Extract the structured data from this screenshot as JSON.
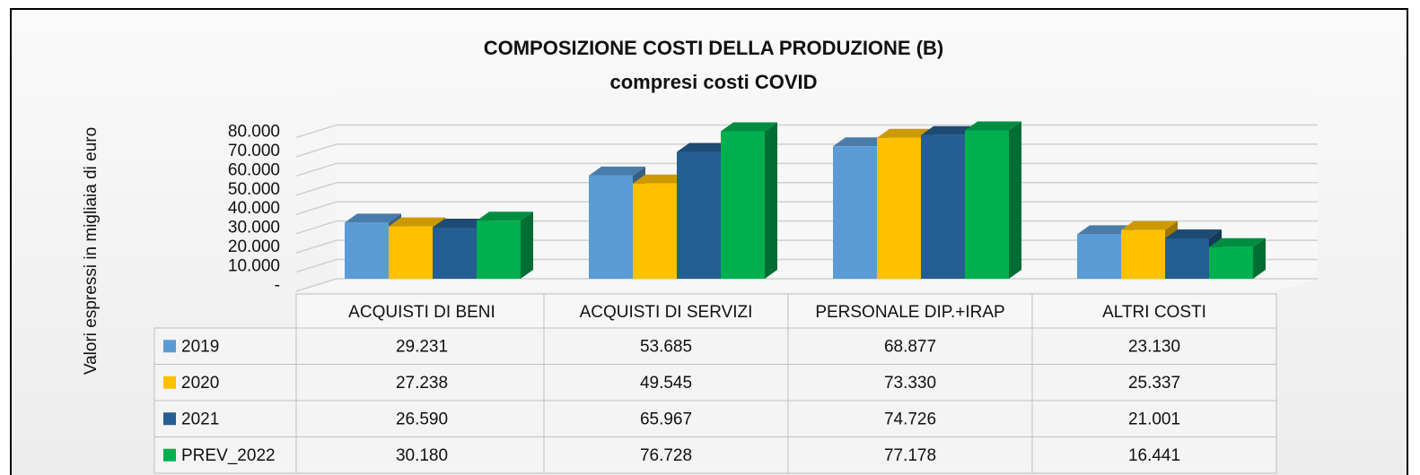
{
  "chart_data": {
    "type": "bar3d",
    "title": "COMPOSIZIONE COSTI DELLA PRODUZIONE (B)",
    "subtitle": "compresi costi COVID",
    "y_label": "Valori espressi in migliaia di euro",
    "categories": [
      "ACQUISTI DI BENI",
      "ACQUISTI DI SERVIZI",
      "PERSONALE DIP.+IRAP",
      "ALTRI COSTI"
    ],
    "series": [
      {
        "name": "2019",
        "color": "#5b9bd5",
        "values": [
          29231,
          53685,
          68877,
          23130
        ],
        "value_labels": [
          "29.231",
          "53.685",
          "68.877",
          "23.130"
        ]
      },
      {
        "name": "2020",
        "color": "#ffc000",
        "values": [
          27238,
          49545,
          73330,
          25337
        ],
        "value_labels": [
          "27.238",
          "49.545",
          "73.330",
          "25.337"
        ]
      },
      {
        "name": "2021",
        "color": "#255e91",
        "values": [
          26590,
          65967,
          74726,
          21001
        ],
        "value_labels": [
          "26.590",
          "65.967",
          "74.726",
          "21.001"
        ]
      },
      {
        "name": "PREV_2022",
        "color": "#00b050",
        "values": [
          30180,
          76728,
          77178,
          16441
        ],
        "value_labels": [
          "30.180",
          "76.728",
          "77.178",
          "16.441"
        ]
      }
    ],
    "ylim": [
      0,
      90000
    ],
    "yticks": [
      {
        "value": 0,
        "label": "-"
      },
      {
        "value": 10000,
        "label": "10.000"
      },
      {
        "value": 20000,
        "label": "20.000"
      },
      {
        "value": 30000,
        "label": "30.000"
      },
      {
        "value": 40000,
        "label": "40.000"
      },
      {
        "value": 50000,
        "label": "50.000"
      },
      {
        "value": 60000,
        "label": "60.000"
      },
      {
        "value": 70000,
        "label": "70.000"
      },
      {
        "value": 80000,
        "label": "80.000"
      }
    ],
    "grid": true
  }
}
